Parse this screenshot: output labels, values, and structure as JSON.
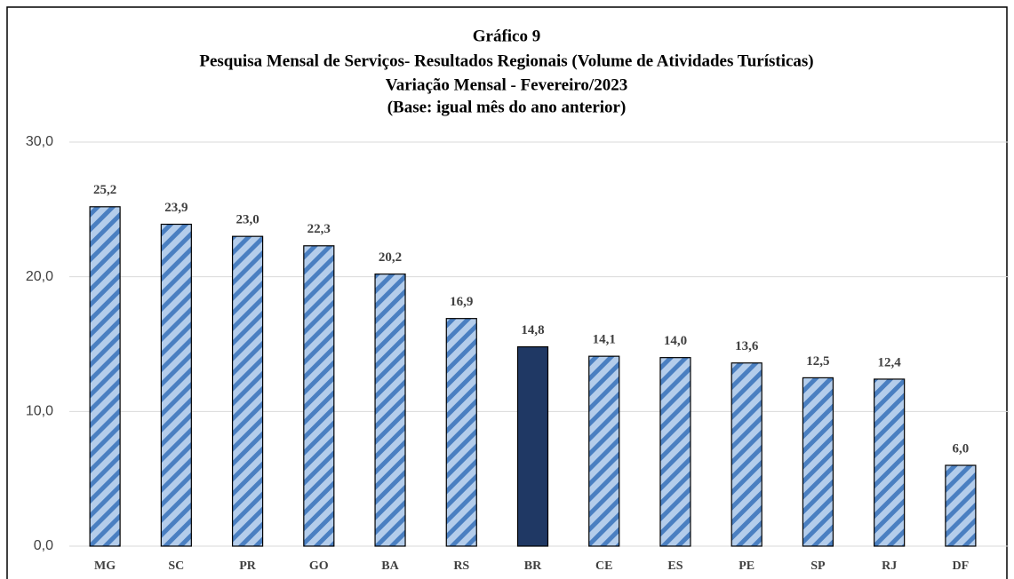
{
  "chart_data": {
    "type": "bar",
    "title": [
      "Gráfico 9",
      "Pesquisa Mensal de Serviços- Resultados Regionais (Volume de Atividades Turísticas)",
      "Variação Mensal - Fevereiro/2023",
      "(Base: igual mês do ano anterior)"
    ],
    "categories": [
      "MG",
      "SC",
      "PR",
      "GO",
      "BA",
      "RS",
      "BR",
      "CE",
      "ES",
      "PE",
      "SP",
      "RJ",
      "DF"
    ],
    "values": [
      25.2,
      23.9,
      23.0,
      22.3,
      20.2,
      16.9,
      14.8,
      14.1,
      14.0,
      13.6,
      12.5,
      12.4,
      6.0
    ],
    "value_labels": [
      "25,2",
      "23,9",
      "23,0",
      "22,3",
      "20,2",
      "16,9",
      "14,8",
      "14,1",
      "14,0",
      "13,6",
      "12,5",
      "12,4",
      "6,0"
    ],
    "colors": [
      "#b4cdeb",
      "#b4cdeb",
      "#b4cdeb",
      "#b4cdeb",
      "#b4cdeb",
      "#b4cdeb",
      "#1f3864",
      "#b4cdeb",
      "#b4cdeb",
      "#b4cdeb",
      "#b4cdeb",
      "#b4cdeb",
      "#b4cdeb"
    ],
    "hatched": [
      true,
      true,
      true,
      true,
      true,
      true,
      false,
      true,
      true,
      true,
      true,
      true,
      true
    ],
    "hatch_color": "#4a7fc1",
    "ylim": [
      0,
      30
    ],
    "yticks": [
      {
        "value": 0,
        "label": "0,0"
      },
      {
        "value": 10,
        "label": "10,0"
      },
      {
        "value": 20,
        "label": "20,0"
      },
      {
        "value": 30,
        "label": "30,0"
      }
    ],
    "grid": true
  }
}
